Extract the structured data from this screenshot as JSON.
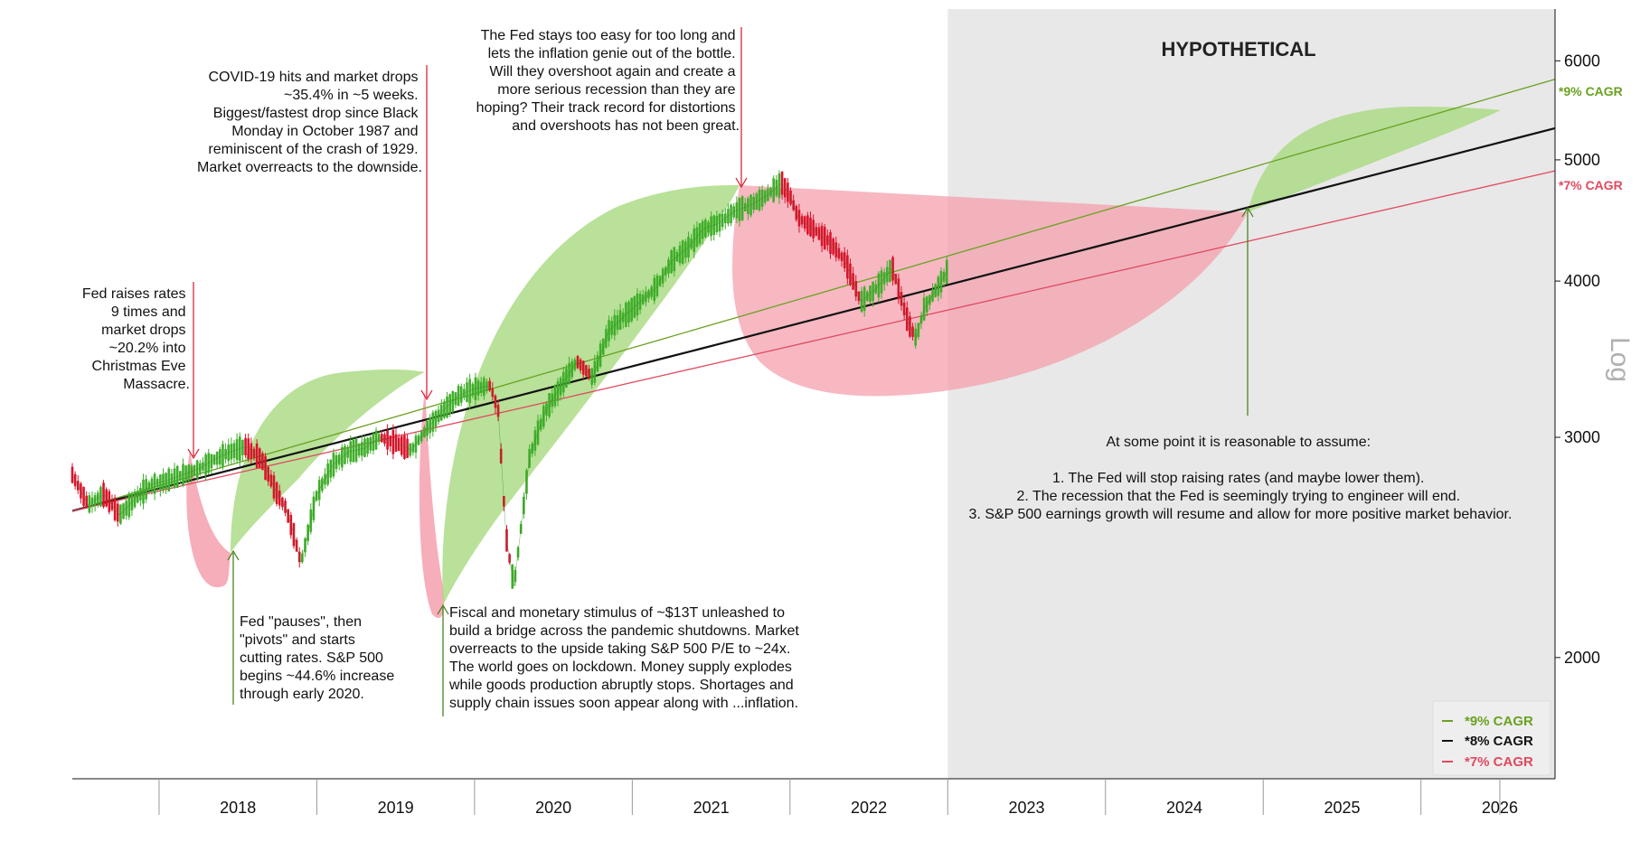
{
  "chart_data": {
    "type": "line",
    "title": "",
    "xlabel": "",
    "ylabel": "Log",
    "scale": "log",
    "ylim": [
      1600,
      6600
    ],
    "xlim": [
      2017.45,
      2026.85
    ],
    "x_tick_labels": [
      "2018",
      "2019",
      "2020",
      "2021",
      "2022",
      "2023",
      "2024",
      "2025",
      "2026"
    ],
    "y_ticks": [
      {
        "value": 2000,
        "label": "2000"
      },
      {
        "value": 3000,
        "label": "3000"
      },
      {
        "value": 4000,
        "label": "4000"
      },
      {
        "value": 5000,
        "label": "5000"
      },
      {
        "value": 6000,
        "label": "6000"
      }
    ],
    "hypothetical_region": {
      "label": "HYPOTHETICAL",
      "start": 2023.0,
      "color": "#e8e8e8"
    },
    "cagr_lines": [
      {
        "name": "*9% CAGR",
        "color": "#6aa121",
        "x": [
          2017.45,
          2026.85
        ],
        "y": [
          2620,
          5800
        ]
      },
      {
        "name": "*8% CAGR",
        "color": "#111111",
        "x": [
          2017.45,
          2026.85
        ],
        "y": [
          2620,
          5300
        ]
      },
      {
        "name": "*7% CAGR",
        "color": "#e2485f",
        "x": [
          2017.45,
          2026.85
        ],
        "y": [
          2620,
          4900
        ]
      }
    ],
    "price_series": {
      "name": "S&P 500",
      "up_color": "#3fae2a",
      "down_color": "#d9142b",
      "x": [
        2017.45,
        2017.55,
        2017.65,
        2017.75,
        2017.85,
        2017.95,
        2018.05,
        2018.15,
        2018.25,
        2018.35,
        2018.45,
        2018.55,
        2018.65,
        2018.75,
        2018.8,
        2018.85,
        2018.9,
        2019.0,
        2019.1,
        2019.2,
        2019.3,
        2019.4,
        2019.5,
        2019.6,
        2019.7,
        2019.8,
        2019.9,
        2020.0,
        2020.1,
        2020.15,
        2020.2,
        2020.25,
        2020.35,
        2020.45,
        2020.55,
        2020.65,
        2020.75,
        2020.85,
        2020.95,
        2021.05,
        2021.15,
        2021.25,
        2021.35,
        2021.45,
        2021.55,
        2021.65,
        2021.75,
        2021.85,
        2021.95,
        2022.0,
        2022.05,
        2022.15,
        2022.25,
        2022.35,
        2022.45,
        2022.55,
        2022.65,
        2022.75,
        2022.8,
        2022.85,
        2022.95,
        2023.0
      ],
      "y": [
        2800,
        2650,
        2700,
        2600,
        2680,
        2750,
        2770,
        2800,
        2830,
        2880,
        2920,
        2950,
        2880,
        2700,
        2640,
        2520,
        2380,
        2700,
        2850,
        2920,
        2940,
        3000,
        2970,
        2930,
        3050,
        3150,
        3240,
        3280,
        3300,
        3150,
        2500,
        2280,
        2900,
        3150,
        3300,
        3450,
        3350,
        3650,
        3750,
        3850,
        3950,
        4150,
        4250,
        4400,
        4450,
        4550,
        4600,
        4680,
        4790,
        4680,
        4500,
        4400,
        4300,
        4150,
        3850,
        3950,
        4100,
        3700,
        3600,
        3800,
        3980,
        4080
      ]
    },
    "shaded_regions": [
      {
        "name": "2018 drop",
        "color": "#f4a0ae"
      },
      {
        "name": "2019 rally",
        "color": "#a8d97f"
      },
      {
        "name": "2020 crash",
        "color": "#f4a0ae"
      },
      {
        "name": "2020-21 rally",
        "color": "#a8d97f"
      },
      {
        "name": "2022 bear",
        "color": "#f4a0ae"
      },
      {
        "name": "2025 hypothetical rally",
        "color": "#a8d97f"
      }
    ],
    "annotations": [
      {
        "id": "fed-raises",
        "lines": [
          "Fed raises rates",
          "9 times and",
          "market drops",
          "~20.2% into",
          "Christmas Eve",
          "Massacre."
        ]
      },
      {
        "id": "covid",
        "lines": [
          "COVID-19 hits and market drops",
          "~35.4% in ~5 weeks.",
          "Biggest/fastest drop since Black",
          "Monday in October 1987 and",
          "reminiscent of the crash of 1929.",
          "Market overreacts to the downside."
        ]
      },
      {
        "id": "fed-easy",
        "lines": [
          "The Fed stays too easy for too long and",
          "lets the inflation genie out of the bottle.",
          "Will they overshoot again and create a",
          "more serious recession than they are",
          "hoping? Their track record for distortions",
          "and overshoots has not been great."
        ]
      },
      {
        "id": "fed-pauses",
        "lines": [
          "Fed \"pauses\", then",
          "\"pivots\" and starts",
          "cutting rates. S&P 500",
          "begins ~44.6% increase",
          "through early 2020."
        ]
      },
      {
        "id": "stimulus",
        "lines": [
          "Fiscal and monetary stimulus of ~$13T unleashed to",
          "build a bridge across the pandemic shutdowns. Market",
          "overreacts to the upside taking S&P 500 P/E to ~24x.",
          "The world goes on lockdown. Money supply explodes",
          "while goods production abruptly stops. Shortages and",
          "supply chain issues soon appear along with ...inflation."
        ]
      },
      {
        "id": "reasonable",
        "lines": [
          "At some point it is reasonable to assume:",
          "",
          "1. The Fed will stop raising rates (and maybe lower them).",
          "2. The recession that the Fed is seemingly trying to engineer will end.",
          "3. S&P 500 earnings growth will resume and allow for more positive market behavior."
        ]
      }
    ],
    "right_labels": [
      "*9% CAGR",
      "*7% CAGR"
    ],
    "legend": {
      "placement": "bottom-right",
      "entries": [
        {
          "label": "*9% CAGR",
          "color": "#6aa121"
        },
        {
          "label": "*8% CAGR",
          "color": "#111111"
        },
        {
          "label": "*7% CAGR",
          "color": "#e2485f"
        }
      ]
    }
  }
}
